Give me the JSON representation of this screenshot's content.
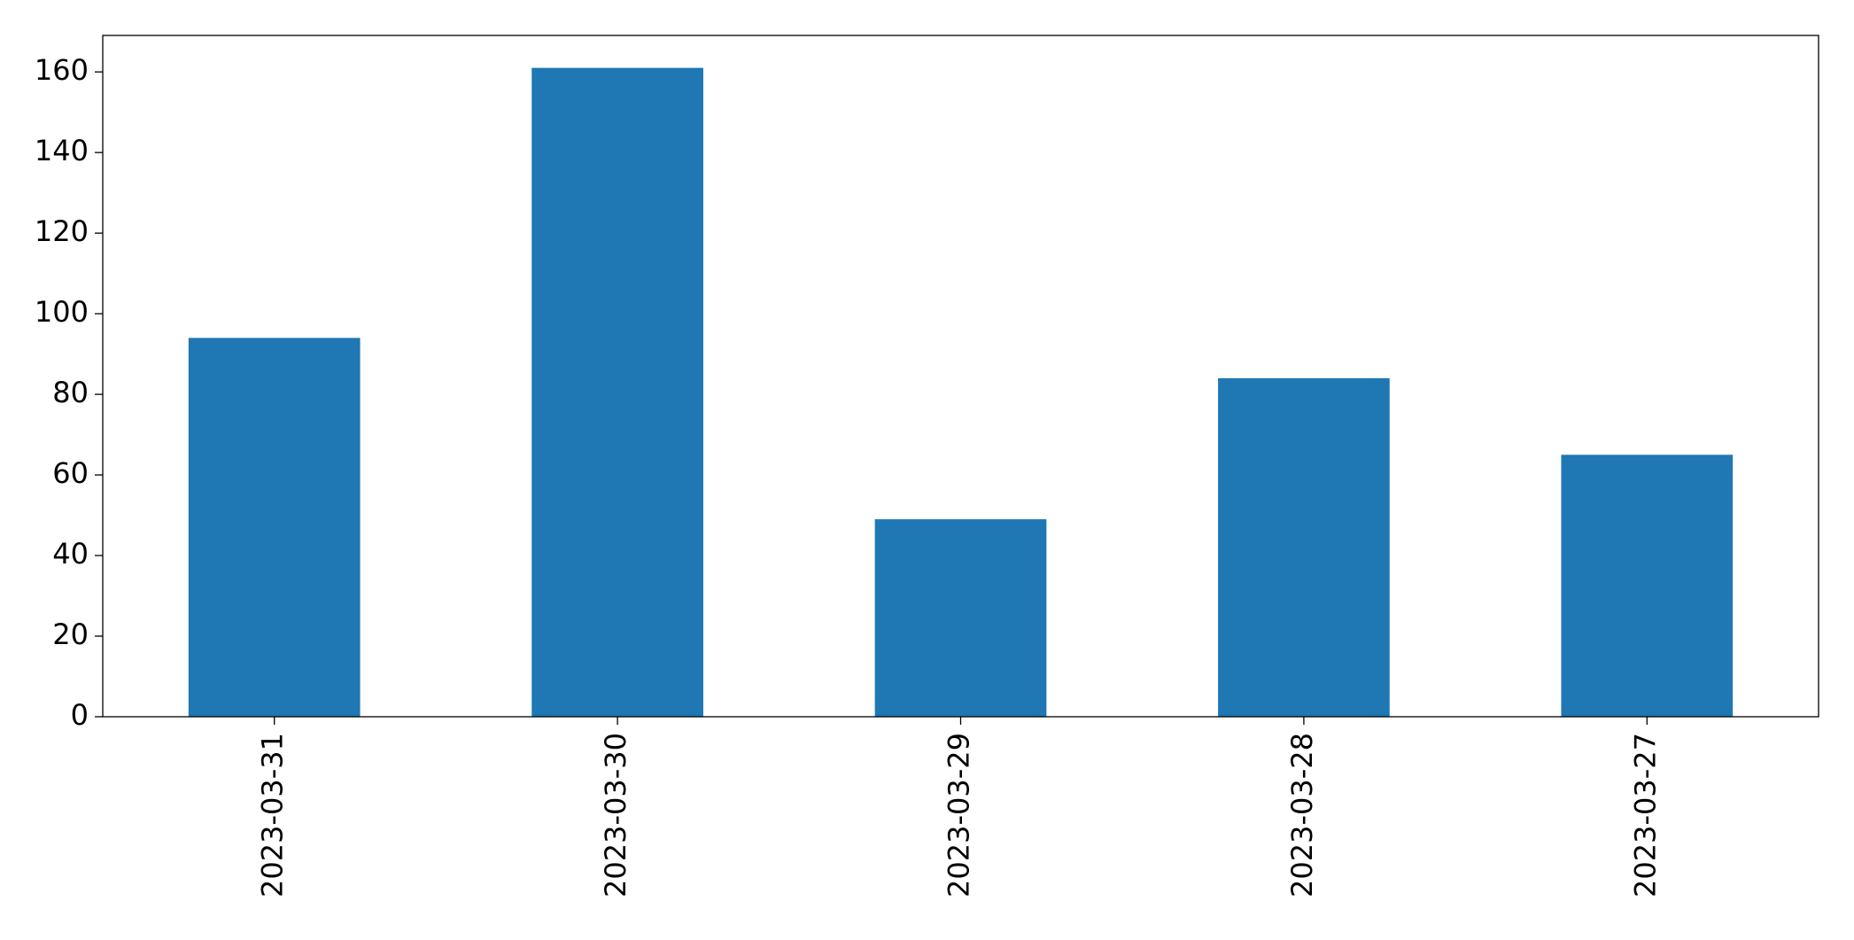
{
  "chart_data": {
    "type": "bar",
    "categories": [
      "2023-03-31",
      "2023-03-30",
      "2023-03-29",
      "2023-03-28",
      "2023-03-27"
    ],
    "values": [
      94,
      161,
      49,
      84,
      65
    ],
    "color": "#1f77b4",
    "ylim": [
      0,
      169.05
    ],
    "yticks": [
      0,
      20,
      40,
      60,
      80,
      100,
      120,
      140,
      160
    ],
    "grid": false
  }
}
